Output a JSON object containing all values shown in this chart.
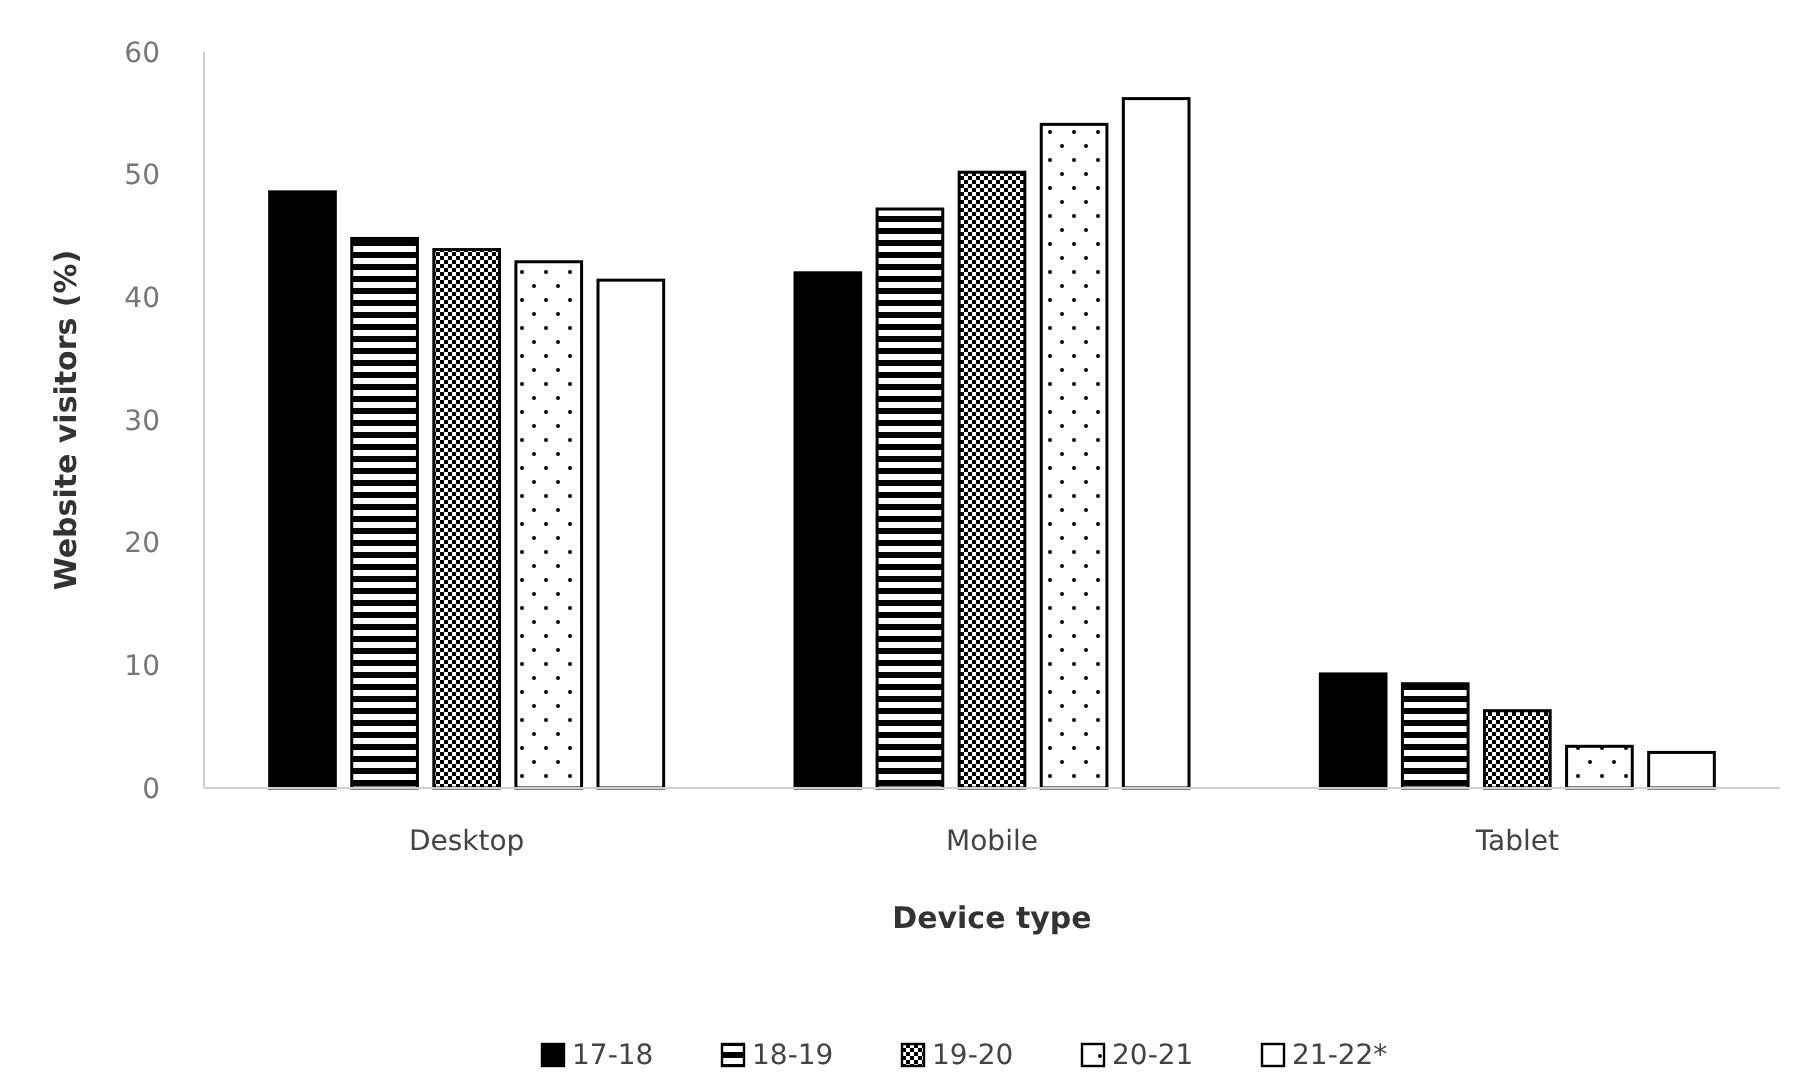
{
  "chart_data": {
    "type": "bar",
    "xlabel": "Device type",
    "ylabel": "Website visitors (%)",
    "categories": [
      "Desktop",
      "Mobile",
      "Tablet"
    ],
    "series": [
      {
        "name": "17-18",
        "color": "#000000",
        "values": [
          48.6,
          42.0,
          9.3
        ]
      },
      {
        "name": "18-19",
        "color": "#000000",
        "values": [
          44.8,
          47.2,
          8.5
        ]
      },
      {
        "name": "19-20",
        "color": "#000000",
        "values": [
          43.9,
          50.2,
          6.3
        ]
      },
      {
        "name": "20-21",
        "color": "#000000",
        "values": [
          42.9,
          54.1,
          3.4
        ]
      },
      {
        "name": "21-22*",
        "color": "#ffffff",
        "values": [
          41.4,
          56.2,
          2.9
        ]
      }
    ],
    "ylim": [
      0,
      60
    ],
    "yticks": [
      0,
      10,
      20,
      30,
      40,
      50,
      60
    ],
    "grid": false,
    "legend": "bottom"
  }
}
